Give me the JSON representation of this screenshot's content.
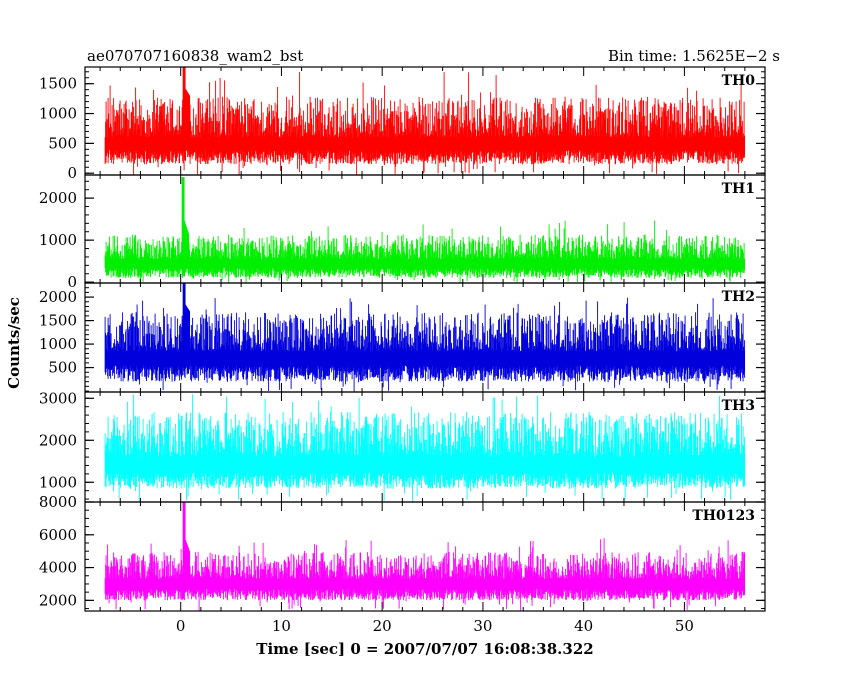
{
  "chart_data": {
    "type": "line",
    "title": "ae070707160838_wam2_bst",
    "subtitle": "Bin time: 1.5625E−2 s",
    "xlabel": "Time [sec] 0 = 2007/07/07 16:08:38.322",
    "ylabel": "Counts/sec",
    "xlim": [
      -9.5,
      58
    ],
    "x_ticks": [
      {
        "value": 0,
        "label": "0"
      },
      {
        "value": 10,
        "label": "10"
      },
      {
        "value": 20,
        "label": "20"
      },
      {
        "value": 30,
        "label": "30"
      },
      {
        "value": 40,
        "label": "40"
      },
      {
        "value": 50,
        "label": "50"
      }
    ],
    "x_minor_step": 2,
    "data_x_range": [
      -7.5,
      56
    ],
    "bin_time": 0.015625,
    "grid": false,
    "series": [
      {
        "name": "TH0",
        "color": "#ff0000",
        "ylim": [
          -30,
          1780
        ],
        "y_major": [
          0,
          500,
          1000,
          1500
        ],
        "y_minor_step": 100,
        "y_tick_labels": [
          "0",
          "500",
          "1000",
          "1500"
        ],
        "baseline": 150,
        "mean": 600,
        "peak_typical": 1300,
        "peak_max": 1700,
        "burst": {
          "t": 0.3,
          "peak": 1800
        }
      },
      {
        "name": "TH1",
        "color": "#00ee00",
        "ylim": [
          -20,
          2550
        ],
        "y_major": [
          0,
          1000,
          2000
        ],
        "y_minor_step": 200,
        "y_tick_labels": [
          "0",
          "1000",
          "2000"
        ],
        "baseline": 100,
        "mean": 550,
        "peak_typical": 1150,
        "peak_max": 1500,
        "burst": {
          "t": 0.2,
          "peak": 2500
        }
      },
      {
        "name": "TH2",
        "color": "#0000dd",
        "ylim": [
          -20,
          2300
        ],
        "y_major": [
          500,
          1000,
          1500,
          2000
        ],
        "y_minor_step": 100,
        "y_tick_labels": [
          "500",
          "1000",
          "1500",
          "2000"
        ],
        "baseline": 200,
        "mean": 850,
        "peak_typical": 1700,
        "peak_max": 2000,
        "burst": {
          "t": 0.3,
          "peak": 2300
        }
      },
      {
        "name": "TH3",
        "color": "#00ffff",
        "ylim": [
          530,
          3150
        ],
        "y_major": [
          1000,
          2000,
          3000
        ],
        "y_minor_step": 200,
        "y_tick_labels": [
          "1000",
          "2000",
          "3000"
        ],
        "baseline": 850,
        "mean": 1600,
        "peak_typical": 2700,
        "peak_max": 3100,
        "burst": null
      },
      {
        "name": "TH0123",
        "color": "#ff00ff",
        "ylim": [
          1350,
          8000
        ],
        "y_major": [
          2000,
          4000,
          6000,
          8000
        ],
        "y_minor_step": 500,
        "y_tick_labels": [
          "2000",
          "4000",
          "6000",
          "8000"
        ],
        "baseline": 2000,
        "mean": 3300,
        "peak_typical": 5000,
        "peak_max": 5800,
        "burst": {
          "t": 0.3,
          "peak": 8000
        }
      }
    ]
  }
}
